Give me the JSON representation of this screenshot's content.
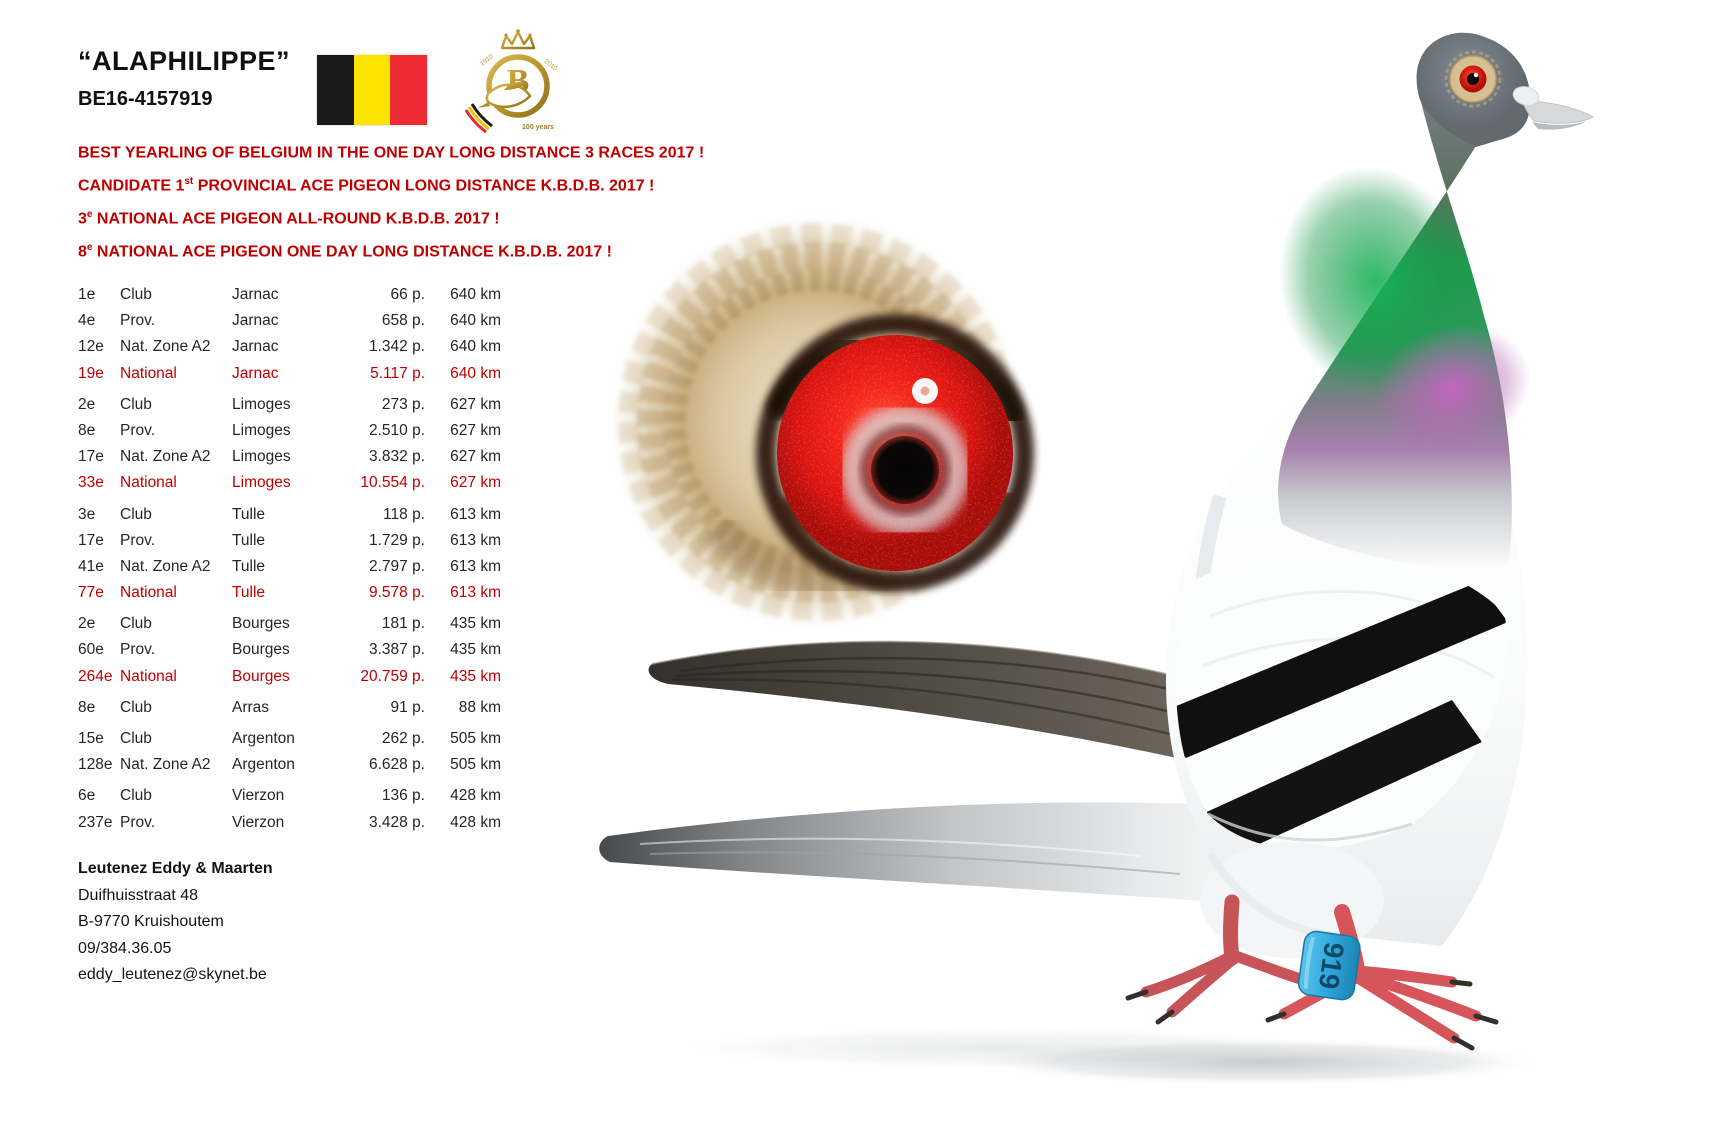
{
  "card": {
    "title": "“ALAPHILIPPE”",
    "ring_number": "BE16-4157919"
  },
  "flag": {
    "country": "Belgium",
    "black": "#1a1a1a",
    "yellow": "#fce300",
    "red": "#ee2b33"
  },
  "kbdb_logo": {
    "letter": "B",
    "year_left": "1910",
    "year_right": "2010",
    "caption": "100 years",
    "gold": "#b9952b"
  },
  "achievements": {
    "color": "#C00000",
    "lines": [
      {
        "pre": "BEST YEARLING OF BELGIUM IN THE ONE DAY LONG DISTANCE 3 RACES 2017 !",
        "sup": "",
        "post": ""
      },
      {
        "pre": "CANDIDATE 1",
        "sup": "st",
        "post": " PROVINCIAL ACE PIGEON LONG DISTANCE K.B.D.B. 2017 !"
      },
      {
        "pre": "3",
        "sup": "e",
        "post": " NATIONAL ACE PIGEON ALL-ROUND K.B.D.B. 2017 !"
      },
      {
        "pre": "8",
        "sup": "e",
        "post": " NATIONAL ACE PIGEON ONE DAY LONG DISTANCE K.B.D.B. 2017 !"
      }
    ]
  },
  "results": {
    "highlight_color": "#C00000",
    "groups": [
      {
        "rows": [
          {
            "pos": "1e",
            "level": "Club",
            "race": "Jarnac",
            "pigeons": "66 p.",
            "distance": "640 km",
            "highlight": false
          },
          {
            "pos": "4e",
            "level": "Prov.",
            "race": "Jarnac",
            "pigeons": "658 p.",
            "distance": "640 km",
            "highlight": false
          },
          {
            "pos": "12e",
            "level": "Nat. Zone A2",
            "race": "Jarnac",
            "pigeons": "1.342 p.",
            "distance": "640 km",
            "highlight": false
          },
          {
            "pos": "19e",
            "level": "National",
            "race": "Jarnac",
            "pigeons": "5.117 p.",
            "distance": "640 km",
            "highlight": true
          }
        ]
      },
      {
        "rows": [
          {
            "pos": "2e",
            "level": "Club",
            "race": "Limoges",
            "pigeons": "273 p.",
            "distance": "627 km",
            "highlight": false
          },
          {
            "pos": "8e",
            "level": "Prov.",
            "race": "Limoges",
            "pigeons": "2.510 p.",
            "distance": "627 km",
            "highlight": false
          },
          {
            "pos": "17e",
            "level": "Nat. Zone A2",
            "race": "Limoges",
            "pigeons": "3.832 p.",
            "distance": "627 km",
            "highlight": false
          },
          {
            "pos": "33e",
            "level": "National",
            "race": "Limoges",
            "pigeons": "10.554 p.",
            "distance": "627 km",
            "highlight": true
          }
        ]
      },
      {
        "rows": [
          {
            "pos": "3e",
            "level": "Club",
            "race": "Tulle",
            "pigeons": "118 p.",
            "distance": "613 km",
            "highlight": false
          },
          {
            "pos": "17e",
            "level": "Prov.",
            "race": "Tulle",
            "pigeons": "1.729 p.",
            "distance": "613 km",
            "highlight": false
          },
          {
            "pos": "41e",
            "level": "Nat. Zone A2",
            "race": "Tulle",
            "pigeons": "2.797 p.",
            "distance": "613 km",
            "highlight": false
          },
          {
            "pos": "77e",
            "level": "National",
            "race": "Tulle",
            "pigeons": "9.578 p.",
            "distance": "613 km",
            "highlight": true
          }
        ]
      },
      {
        "rows": [
          {
            "pos": "2e",
            "level": "Club",
            "race": "Bourges",
            "pigeons": "181 p.",
            "distance": "435 km",
            "highlight": false
          },
          {
            "pos": "60e",
            "level": "Prov.",
            "race": "Bourges",
            "pigeons": "3.387 p.",
            "distance": "435 km",
            "highlight": false
          },
          {
            "pos": "264e",
            "level": "National",
            "race": "Bourges",
            "pigeons": "20.759 p.",
            "distance": "435 km",
            "highlight": true
          }
        ]
      },
      {
        "rows": [
          {
            "pos": "8e",
            "level": "Club",
            "race": "Arras",
            "pigeons": "91 p.",
            "distance": "88 km",
            "highlight": false
          }
        ]
      },
      {
        "rows": [
          {
            "pos": "15e",
            "level": "Club",
            "race": "Argenton",
            "pigeons": "262 p.",
            "distance": "505 km",
            "highlight": false
          },
          {
            "pos": "128e",
            "level": "Nat. Zone A2",
            "race": "Argenton",
            "pigeons": "6.628 p.",
            "distance": "505 km",
            "highlight": false
          }
        ]
      },
      {
        "rows": [
          {
            "pos": "6e",
            "level": "Club",
            "race": "Vierzon",
            "pigeons": "136 p.",
            "distance": "428 km",
            "highlight": false
          },
          {
            "pos": "237e",
            "level": "Prov.",
            "race": "Vierzon",
            "pigeons": "3.428 p.",
            "distance": "428 km",
            "highlight": false
          }
        ]
      }
    ]
  },
  "owner": {
    "name": "Leutenez Eddy & Maarten",
    "address_lines": [
      "Duifhuisstraat 48",
      "B-9770 Kruishoutem",
      "09/384.36.05",
      "eddy_leutenez@skynet.be"
    ]
  },
  "pigeon": {
    "leg_band_number": "919",
    "band_color": "#2fa8dc"
  }
}
